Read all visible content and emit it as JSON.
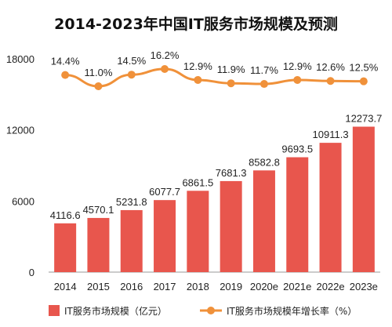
{
  "chart_data": {
    "type": "bar",
    "title": "2014-2023年中国IT服务市场规模及预测",
    "categories": [
      "2014",
      "2015",
      "2016",
      "2017",
      "2018",
      "2019",
      "2020e",
      "2021e",
      "2022e",
      "2023e"
    ],
    "series": [
      {
        "name": "IT服务市场规模（亿元）",
        "type": "bar",
        "color": "#e8564d",
        "values": [
          4116.6,
          4570.1,
          5231.8,
          6077.7,
          6861.5,
          7681.3,
          8582.8,
          9693.5,
          10911.3,
          12273.7
        ],
        "labels": [
          "4116.6",
          "4570.1",
          "5231.8",
          "6077.7",
          "6861.5",
          "7681.3",
          "8582.8",
          "9693.5",
          "10911.3",
          "12273.7"
        ]
      },
      {
        "name": "IT服务市场规模年增长率（%）",
        "type": "line",
        "color": "#f0913a",
        "values": [
          14.4,
          11.0,
          14.5,
          16.2,
          12.9,
          11.9,
          11.7,
          12.9,
          12.6,
          12.5
        ],
        "labels": [
          "14.4%",
          "11.0%",
          "14.5%",
          "16.2%",
          "12.9%",
          "11.9%",
          "11.7%",
          "12.9%",
          "12.6%",
          "12.5%"
        ]
      }
    ],
    "y_ticks": [
      "0",
      "6000",
      "12000",
      "18000"
    ],
    "ylim": [
      0,
      18000
    ],
    "grid": false,
    "legend_position": "bottom"
  }
}
